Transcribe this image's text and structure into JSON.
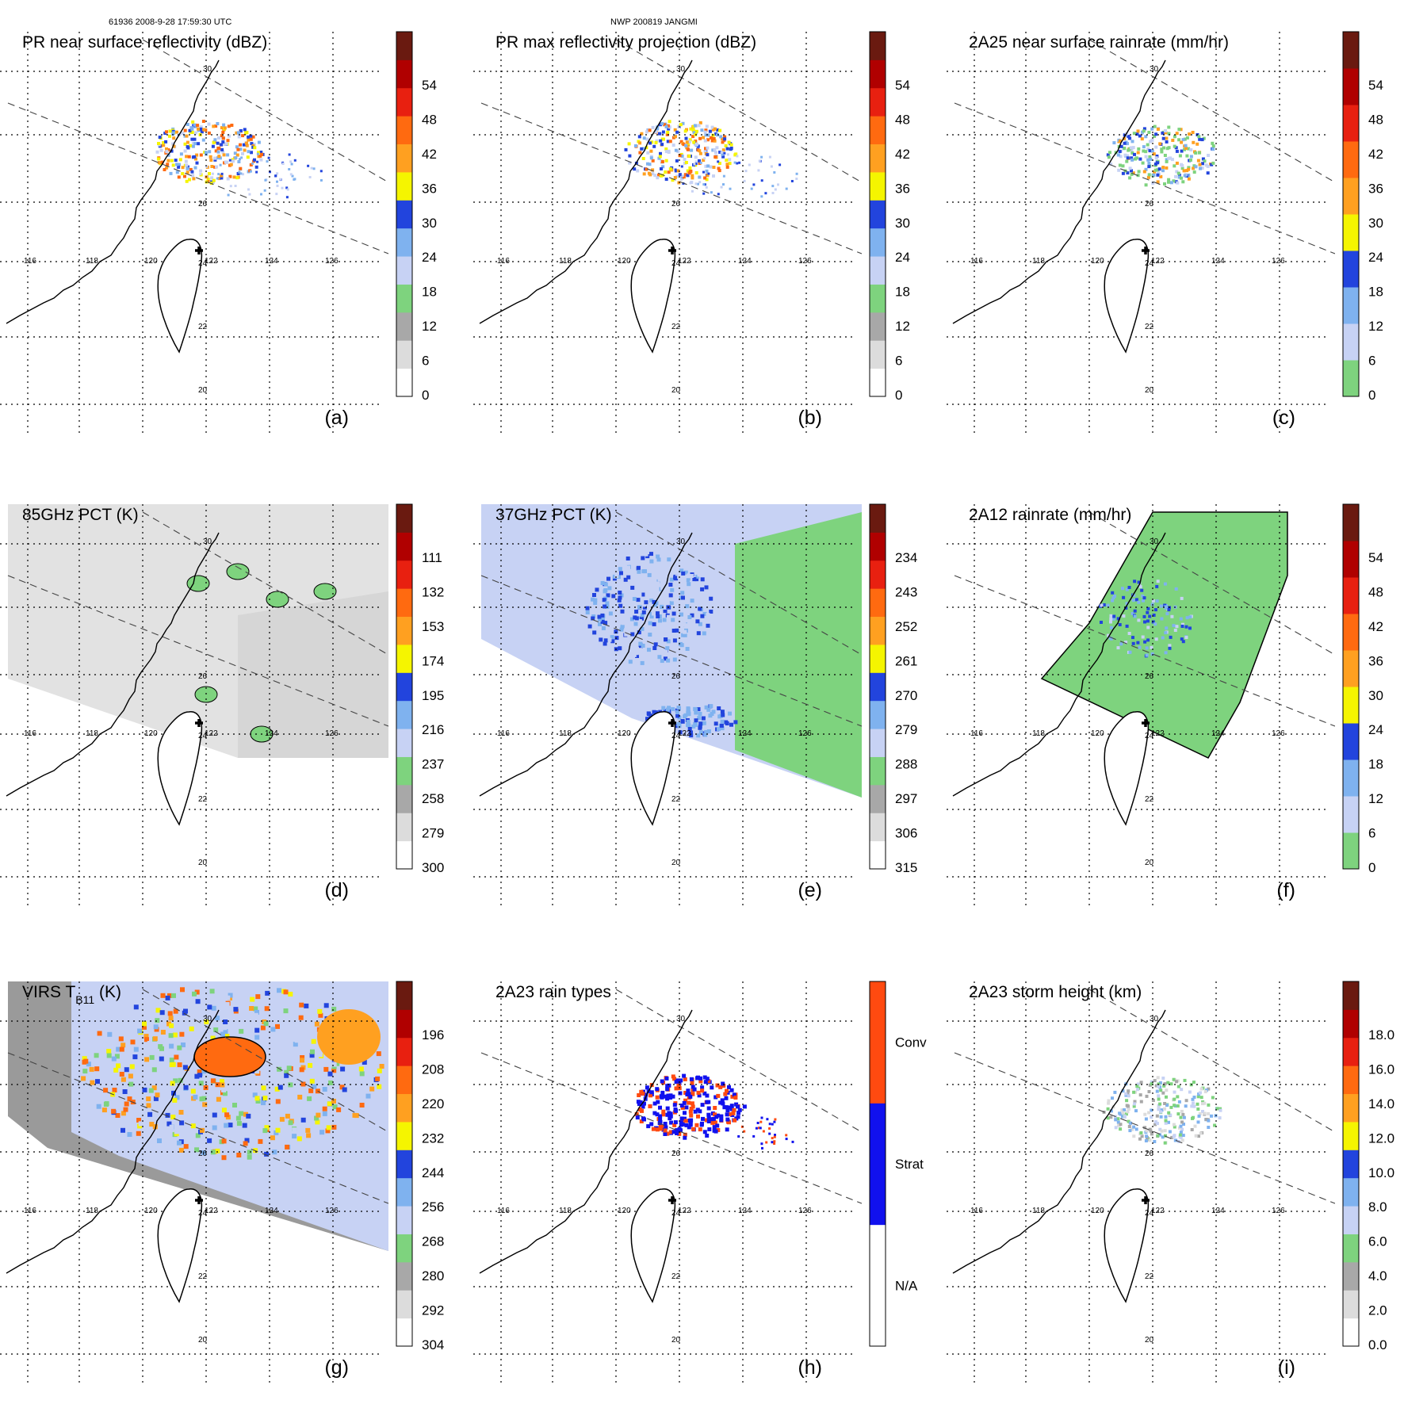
{
  "header": {
    "left": "61936 2008-9-28 17:59:30 UTC",
    "center": "NWP 200819 JANGMI"
  },
  "panels": [
    {
      "id": "a",
      "title": "PR near surface reflectivity (dBZ)",
      "label": "(a)",
      "colorbar": [
        "0",
        "6",
        "12",
        "18",
        "24",
        "30",
        "36",
        "42",
        "48",
        "54"
      ],
      "bands": [
        "#ffffff",
        "#dcdcdc",
        "#a8a8a8",
        "#7ed37e",
        "#c7d2f4",
        "#7fb2ef",
        "#2244dd",
        "#f5f500",
        "#ffa020",
        "#ff6a10",
        "#e82010",
        "#b00000",
        "#6a1a10"
      ]
    },
    {
      "id": "b",
      "title": "PR max reflectivity projection (dBZ)",
      "label": "(b)",
      "colorbar": [
        "0",
        "6",
        "12",
        "18",
        "24",
        "30",
        "36",
        "42",
        "48",
        "54"
      ],
      "bands": [
        "#ffffff",
        "#dcdcdc",
        "#a8a8a8",
        "#7ed37e",
        "#c7d2f4",
        "#7fb2ef",
        "#2244dd",
        "#f5f500",
        "#ffa020",
        "#ff6a10",
        "#e82010",
        "#b00000",
        "#6a1a10"
      ]
    },
    {
      "id": "c",
      "title": "2A25 near surface rainrate (mm/hr)",
      "label": "(c)",
      "colorbar": [
        "0",
        "6",
        "12",
        "18",
        "24",
        "30",
        "36",
        "42",
        "48",
        "54"
      ],
      "bands": [
        "#7ed37e",
        "#c7d2f4",
        "#7fb2ef",
        "#2244dd",
        "#f5f500",
        "#ffa020",
        "#ff6a10",
        "#e82010",
        "#b00000",
        "#6a1a10"
      ]
    },
    {
      "id": "d",
      "title": "85GHz PCT (K)",
      "label": "(d)",
      "colorbar": [
        "300",
        "279",
        "258",
        "237",
        "216",
        "195",
        "174",
        "153",
        "132",
        "111"
      ],
      "bands": [
        "#ffffff",
        "#dcdcdc",
        "#a8a8a8",
        "#7ed37e",
        "#c7d2f4",
        "#7fb2ef",
        "#2244dd",
        "#f5f500",
        "#ffa020",
        "#ff6a10",
        "#e82010",
        "#b00000",
        "#6a1a10"
      ]
    },
    {
      "id": "e",
      "title": "37GHz PCT (K)",
      "label": "(e)",
      "colorbar": [
        "315",
        "306",
        "297",
        "288",
        "279",
        "270",
        "261",
        "252",
        "243",
        "234"
      ],
      "bands": [
        "#ffffff",
        "#dcdcdc",
        "#a8a8a8",
        "#7ed37e",
        "#c7d2f4",
        "#7fb2ef",
        "#2244dd",
        "#f5f500",
        "#ffa020",
        "#ff6a10",
        "#e82010",
        "#b00000",
        "#6a1a10"
      ]
    },
    {
      "id": "f",
      "title": "2A12 rainrate (mm/hr)",
      "label": "(f)",
      "colorbar": [
        "0",
        "6",
        "12",
        "18",
        "24",
        "30",
        "36",
        "42",
        "48",
        "54"
      ],
      "bands": [
        "#7ed37e",
        "#c7d2f4",
        "#7fb2ef",
        "#2244dd",
        "#f5f500",
        "#ffa020",
        "#ff6a10",
        "#e82010",
        "#b00000",
        "#6a1a10"
      ]
    },
    {
      "id": "g",
      "title": "VIRS T",
      "title_sub": "B11",
      "title_unit": " (K)",
      "label": "(g)",
      "colorbar": [
        "304",
        "292",
        "280",
        "268",
        "256",
        "244",
        "232",
        "220",
        "208",
        "196"
      ],
      "bands": [
        "#ffffff",
        "#dcdcdc",
        "#a8a8a8",
        "#7ed37e",
        "#c7d2f4",
        "#7fb2ef",
        "#2244dd",
        "#f5f500",
        "#ffa020",
        "#ff6a10",
        "#e82010",
        "#b00000",
        "#6a1a10"
      ]
    },
    {
      "id": "h",
      "title": "2A23 rain types",
      "label": "(h)",
      "colorbar": [
        "N/A",
        "Strat",
        "Conv"
      ],
      "bands": [
        "#ffffff",
        "#1111ee",
        "#ff4a10"
      ]
    },
    {
      "id": "i",
      "title": "2A23 storm height (km)",
      "label": "(i)",
      "colorbar": [
        "0.0",
        "2.0",
        "4.0",
        "6.0",
        "8.0",
        "10.0",
        "12.0",
        "14.0",
        "16.0",
        "18.0"
      ],
      "bands": [
        "#ffffff",
        "#dcdcdc",
        "#a8a8a8",
        "#7ed37e",
        "#c7d2f4",
        "#7fb2ef",
        "#2244dd",
        "#f5f500",
        "#ffa020",
        "#ff6a10",
        "#e82010",
        "#b00000",
        "#6a1a10"
      ]
    }
  ],
  "map": {
    "lon_labels": [
      "116",
      "118",
      "120",
      "122",
      "124",
      "126"
    ],
    "lat_labels": [
      "20",
      "22",
      "24",
      "26",
      "30"
    ]
  }
}
